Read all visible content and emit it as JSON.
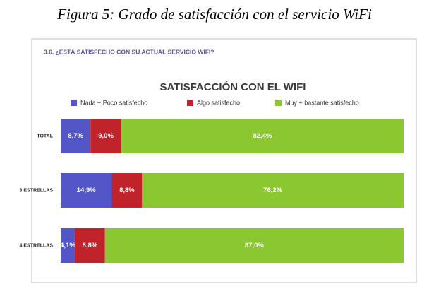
{
  "chart_data": {
    "type": "stacked-bar-horizontal",
    "caption": "Figura 5: Grado de satisfacción con el servicio WiFi",
    "subtitle": "3.6. ¿ESTÁ SATISFECHO CON SU ACTUAL SERVICIO WIFI?",
    "title": "SATISFACCIÓN CON EL WIFI",
    "categories": [
      "TOTAL",
      "3 ESTRELLAS",
      "4 ESTRELLAS"
    ],
    "series": [
      {
        "name": "Nada + Poco satisfecho",
        "color": "#5256c6",
        "values": [
          8.7,
          14.9,
          4.1
        ],
        "value_labels": [
          "8,7%",
          "14,9%",
          "4,1%"
        ]
      },
      {
        "name": "Algo satisfecho",
        "color": "#c1232b",
        "values": [
          9.0,
          8.8,
          8.8
        ],
        "value_labels": [
          "9,0%",
          "8,8%",
          "8,8%"
        ]
      },
      {
        "name": "Muy + bastante satisfecho",
        "color": "#8bc731",
        "values": [
          82.4,
          76.2,
          87.0
        ],
        "value_labels": [
          "82,4%",
          "76,2%",
          "87,0%"
        ]
      }
    ]
  }
}
